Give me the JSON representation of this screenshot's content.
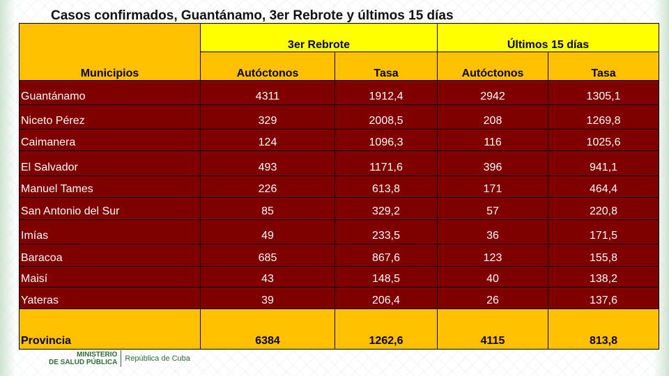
{
  "title": "Casos confirmados, Guantánamo, 3er Rebrote y últimos 15 días",
  "header": {
    "municipios": "Municipios",
    "group1": "3er Rebrote",
    "group2": "Últimos 15 días",
    "autoctonos": "Autóctonos",
    "tasa": "Tasa"
  },
  "rows": [
    {
      "name": "Guantánamo",
      "a1": "4311",
      "t1": "1912,4",
      "a2": "2942",
      "t2": "1305,1"
    },
    {
      "name": "Niceto Pérez",
      "a1": "329",
      "t1": "2008,5",
      "a2": "208",
      "t2": "1269,8"
    },
    {
      "name": "Caimanera",
      "a1": "124",
      "t1": "1096,3",
      "a2": "116",
      "t2": "1025,6"
    },
    {
      "name": "El Salvador",
      "a1": "493",
      "t1": "1171,6",
      "a2": "396",
      "t2": "941,1"
    },
    {
      "name": "Manuel Tames",
      "a1": "226",
      "t1": "613,8",
      "a2": "171",
      "t2": "464,4"
    },
    {
      "name": "San Antonio del Sur",
      "a1": "85",
      "t1": "329,2",
      "a2": "57",
      "t2": "220,8"
    },
    {
      "name": "Imías",
      "a1": "49",
      "t1": "233,5",
      "a2": "36",
      "t2": "171,5"
    },
    {
      "name": "Baracoa",
      "a1": "685",
      "t1": "867,6",
      "a2": "123",
      "t2": "155,8"
    },
    {
      "name": "Maisí",
      "a1": "43",
      "t1": "148,5",
      "a2": "40",
      "t2": "138,2"
    },
    {
      "name": "Yateras",
      "a1": "39",
      "t1": "206,4",
      "a2": "26",
      "t2": "137,6"
    }
  ],
  "total": {
    "name": "Provincia",
    "a1": "6384",
    "t1": "1262,6",
    "a2": "4115",
    "t2": "813,8"
  },
  "footer": {
    "ministry_line1": "MINISTERIO",
    "ministry_line2": "DE SALUD PÚBLICA",
    "country": "República de Cuba"
  }
}
